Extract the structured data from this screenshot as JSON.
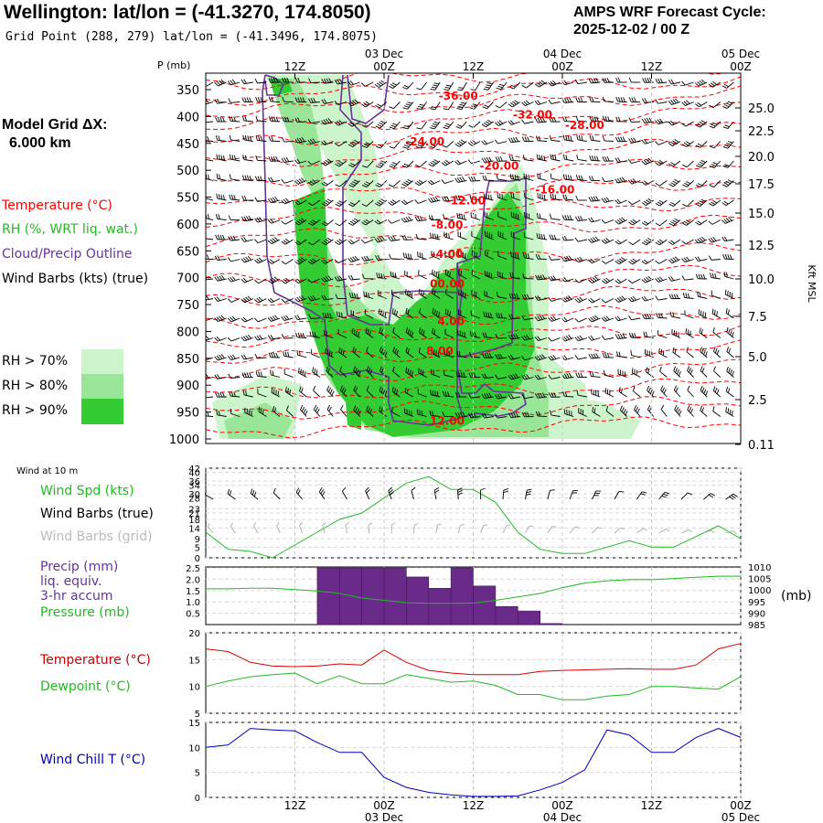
{
  "header": {
    "title": "Wellington:  lat/lon = (-41.3270, 174.8050)",
    "grid_point": "Grid Point (288, 279) lat/lon = (-41.3496, 174.8075)",
    "cycle_line1": "AMPS WRF Forecast Cycle:",
    "cycle_line2": "2025-12-02 / 00  Z"
  },
  "model_grid": {
    "line1": "Model Grid ΔX:",
    "line2": "6.000 km"
  },
  "time_axis": {
    "hours": [
      12,
      24,
      36,
      48,
      60,
      72
    ],
    "top_labels": [
      "12Z",
      "00Z",
      "12Z",
      "00Z",
      "12Z",
      "00Z"
    ],
    "date_labels": [
      "03 Dec",
      "04 Dec",
      "05 Dec"
    ],
    "bottom_labels": [
      "12Z",
      "00Z",
      "12Z",
      "00Z",
      "12Z",
      "00Z"
    ]
  },
  "legend": {
    "temperature": "Temperature (°C)",
    "rh": "RH (%, WRT liq. wat.)",
    "cloud": "Cloud/Precip Outline",
    "wind_barbs": "Wind Barbs (kts) (true)",
    "rh70": "RH > 70%",
    "rh80": "RH > 80%",
    "rh90": "RH > 90%",
    "wind10m": "Wind at 10 m",
    "wind_spd": "Wind Spd (kts)",
    "barbs_true": "Wind Barbs (true)",
    "barbs_grid": "Wind Barbs (grid)",
    "precip1": "Precip (mm)",
    "precip2": "liq. equiv.",
    "precip3": "3-hr accum",
    "pressure": "Pressure (mb)",
    "pressure_unit": "(mb)",
    "temp2": "Temperature (°C)",
    "dewpoint": "Dewpoint (°C)",
    "windchill": "Wind Chill T (°C)"
  },
  "colors": {
    "temperature": "#ff0000",
    "rh": "#22bb22",
    "cloud": "#663399",
    "precip": "#6a2a8a",
    "windchill": "#0000bb",
    "rh70": "#ccf5cc",
    "rh80": "#99e699",
    "rh90": "#33cc33"
  },
  "chart_data": [
    {
      "type": "heatmap",
      "panel": "sounding",
      "y_axis_label": "P (mb)",
      "pressure_levels": [
        350,
        400,
        450,
        500,
        550,
        600,
        650,
        700,
        750,
        800,
        850,
        900,
        950,
        1000
      ],
      "height_axis_label": "Kft MSL",
      "height_ticks": [
        "25.0",
        "22.5",
        "20.0",
        "17.5",
        "15.0",
        "12.5",
        "10.0",
        "7.5",
        "5.0",
        "2.5",
        "0.11"
      ],
      "isotherm_labels": [
        {
          "label": "-36.00",
          "hour": 34,
          "p": 360
        },
        {
          "label": "-32.00",
          "hour": 44,
          "p": 395
        },
        {
          "label": "-28.00",
          "hour": 51,
          "p": 415
        },
        {
          "label": "-24.00",
          "hour": 29.5,
          "p": 445
        },
        {
          "label": "-20.00",
          "hour": 39.5,
          "p": 490
        },
        {
          "label": "-16.00",
          "hour": 47,
          "p": 535
        },
        {
          "label": "-12.00",
          "hour": 35,
          "p": 555
        },
        {
          "label": "-8.00",
          "hour": 32.5,
          "p": 600
        },
        {
          "label": "-4.00",
          "hour": 32.5,
          "p": 655
        },
        {
          "label": "00.00",
          "hour": 32.5,
          "p": 710
        },
        {
          "label": "4.00",
          "hour": 33,
          "p": 780
        },
        {
          "label": "8.00",
          "hour": 31.5,
          "p": 835
        },
        {
          "label": "12.00",
          "hour": 32.5,
          "p": 965
        }
      ]
    },
    {
      "type": "line",
      "panel": "wind",
      "series": [
        {
          "name": "Wind Spd (kts)",
          "x": [
            0,
            3,
            6,
            9,
            12,
            15,
            18,
            21,
            24,
            27,
            30,
            33,
            36,
            39,
            42,
            45,
            48,
            51,
            54,
            57,
            60,
            63,
            66,
            69,
            72
          ],
          "values": [
            12,
            4,
            3,
            0,
            6,
            12,
            18,
            21,
            28,
            35,
            38,
            32,
            32,
            26,
            12,
            4,
            2,
            2,
            5,
            8,
            5,
            5,
            10,
            15,
            9
          ]
        }
      ],
      "yticks": [
        0,
        5,
        9,
        14,
        18,
        21,
        23,
        28,
        30,
        34,
        36,
        40,
        42
      ],
      "ylim": [
        0,
        42
      ]
    },
    {
      "type": "bar",
      "panel": "precip_pressure",
      "series": [
        {
          "name": "Precip (mm)",
          "x": [
            15,
            18,
            21,
            24,
            27,
            30,
            33,
            36,
            39,
            42,
            45
          ],
          "values": [
            2.5,
            2.5,
            2.5,
            2.5,
            2.1,
            1.6,
            2.5,
            1.7,
            0.8,
            0.6,
            0.05
          ]
        },
        {
          "name": "Pressure (mb)",
          "x": [
            0,
            3,
            6,
            9,
            12,
            15,
            18,
            21,
            24,
            27,
            30,
            33,
            36,
            39,
            42,
            45,
            48,
            51,
            54,
            57,
            60,
            63,
            66,
            69,
            72
          ],
          "values": [
            1000.5,
            1000.5,
            1000.8,
            1000.8,
            1000.2,
            999.6,
            998.5,
            996.5,
            995.5,
            994.5,
            994.2,
            994.2,
            994.3,
            995.5,
            997.0,
            998.5,
            1001.0,
            1003.0,
            1004.0,
            1004.5,
            1004.5,
            1005.0,
            1005.5,
            1006.0,
            1006.0
          ]
        }
      ],
      "left_ticks": [
        "0.5",
        "1.0",
        "1.5",
        "2.0",
        "2.5"
      ],
      "right_ticks": [
        "985",
        "990",
        "995",
        "1000",
        "1005",
        "1010"
      ]
    },
    {
      "type": "line",
      "panel": "temperature",
      "series": [
        {
          "name": "Temperature (°C)",
          "x": [
            0,
            3,
            6,
            9,
            12,
            15,
            18,
            21,
            24,
            27,
            30,
            33,
            36,
            39,
            42,
            45,
            48,
            51,
            54,
            57,
            60,
            63,
            66,
            69,
            72
          ],
          "values": [
            17,
            16.5,
            14.5,
            13.8,
            13.7,
            13.8,
            14.2,
            14,
            16.8,
            14.5,
            13,
            12.5,
            12.2,
            12.2,
            12.2,
            12.8,
            13,
            13.1,
            13.2,
            13.3,
            13.2,
            13.2,
            14,
            17,
            18
          ]
        },
        {
          "name": "Dewpoint (°C)",
          "x": [
            0,
            3,
            6,
            9,
            12,
            15,
            18,
            21,
            24,
            27,
            30,
            33,
            36,
            39,
            42,
            45,
            48,
            51,
            54,
            57,
            60,
            63,
            66,
            69,
            72
          ],
          "values": [
            10,
            11,
            11.8,
            12.2,
            12.5,
            10.5,
            12,
            10.5,
            10.5,
            12.2,
            11.5,
            10.8,
            11,
            10.2,
            8.5,
            8.5,
            7.5,
            7.5,
            8.2,
            8.5,
            10,
            10,
            9.7,
            9.5,
            11.8
          ]
        }
      ],
      "yticks": [
        5,
        10,
        15,
        20
      ],
      "ylim": [
        5,
        20
      ]
    },
    {
      "type": "line",
      "panel": "windchill",
      "series": [
        {
          "name": "Wind Chill T (°C)",
          "x": [
            0,
            3,
            6,
            9,
            12,
            15,
            18,
            21,
            24,
            27,
            30,
            33,
            36,
            39,
            42,
            45,
            48,
            51,
            54,
            57,
            60,
            63,
            66,
            69,
            72
          ],
          "values": [
            10,
            10.5,
            13.8,
            13.5,
            13.3,
            11,
            9,
            9,
            4,
            2,
            1,
            0.5,
            0.2,
            0.2,
            0.3,
            1.5,
            3,
            5.5,
            13.5,
            12.5,
            9,
            9,
            12,
            13.8,
            12
          ]
        }
      ],
      "yticks": [
        0,
        5,
        10,
        15
      ],
      "ylim": [
        0,
        15
      ]
    }
  ]
}
